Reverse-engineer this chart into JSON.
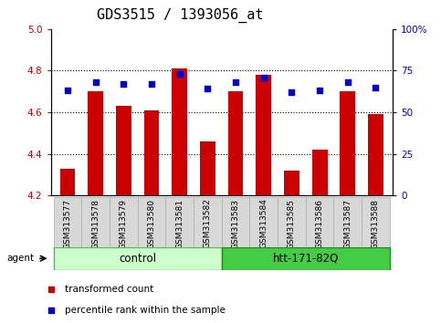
{
  "title": "GDS3515 / 1393056_at",
  "samples": [
    "GSM313577",
    "GSM313578",
    "GSM313579",
    "GSM313580",
    "GSM313581",
    "GSM313582",
    "GSM313583",
    "GSM313584",
    "GSM313585",
    "GSM313586",
    "GSM313587",
    "GSM313588"
  ],
  "red_values": [
    4.33,
    4.7,
    4.63,
    4.61,
    4.81,
    4.46,
    4.7,
    4.78,
    4.32,
    4.42,
    4.7,
    4.59
  ],
  "blue_values": [
    63,
    68,
    67,
    67,
    73,
    64,
    68,
    71,
    62,
    63,
    68,
    65
  ],
  "ylim_left": [
    4.2,
    5.0
  ],
  "ylim_right": [
    0,
    100
  ],
  "yticks_left": [
    4.2,
    4.4,
    4.6,
    4.8,
    5.0
  ],
  "yticks_right": [
    0,
    25,
    50,
    75,
    100
  ],
  "ytick_labels_right": [
    "0",
    "25",
    "50",
    "75",
    "100%"
  ],
  "grid_values": [
    4.4,
    4.6,
    4.8
  ],
  "bar_color": "#cc0000",
  "dot_color": "#0000cc",
  "bar_width": 0.55,
  "control_group": {
    "label": "control",
    "start": 0,
    "end": 5,
    "color": "#ccffcc",
    "edge": "#55bb55"
  },
  "htt_group": {
    "label": "htt-171-82Q",
    "start": 6,
    "end": 11,
    "color": "#44cc44",
    "edge": "#228822"
  },
  "agent_label": "agent",
  "legend_items": [
    {
      "color": "#cc0000",
      "label": "transformed count"
    },
    {
      "color": "#0000cc",
      "label": "percentile rank within the sample"
    }
  ],
  "ylabel_left_color": "#cc0000",
  "ylabel_right_color": "#0000cc",
  "title_fontsize": 11,
  "tick_fontsize": 7.5,
  "sample_fontsize": 6.5,
  "group_fontsize": 8.5,
  "legend_fontsize": 7.5,
  "agent_fontsize": 7.5,
  "background": "#ffffff",
  "sample_box_color": "#d8d8d8",
  "sample_box_edge": "#aaaaaa"
}
